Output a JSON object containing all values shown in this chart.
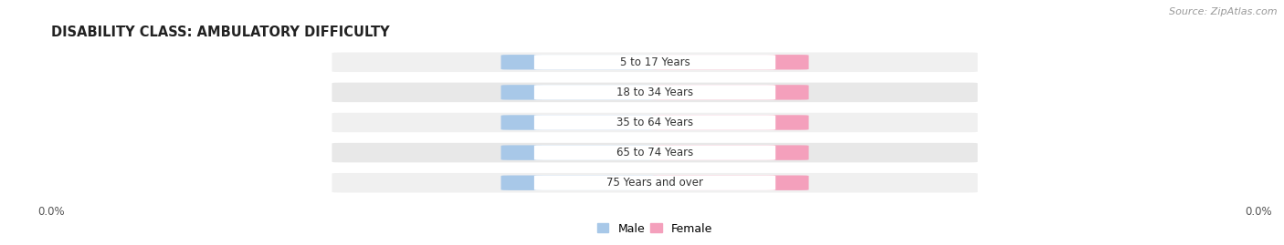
{
  "title": "DISABILITY CLASS: AMBULATORY DIFFICULTY",
  "source": "Source: ZipAtlas.com",
  "categories": [
    "5 to 17 Years",
    "18 to 34 Years",
    "35 to 64 Years",
    "65 to 74 Years",
    "75 Years and over"
  ],
  "male_values": [
    0.0,
    0.0,
    0.0,
    0.0,
    0.0
  ],
  "female_values": [
    0.0,
    0.0,
    0.0,
    0.0,
    0.0
  ],
  "male_color": "#a8c8e8",
  "female_color": "#f4a0bc",
  "title_color": "#222222",
  "source_color": "#999999",
  "bg_color_odd": "#f0f0f0",
  "bg_color_even": "#e8e8e8",
  "figsize": [
    14.06,
    2.69
  ],
  "dpi": 100
}
